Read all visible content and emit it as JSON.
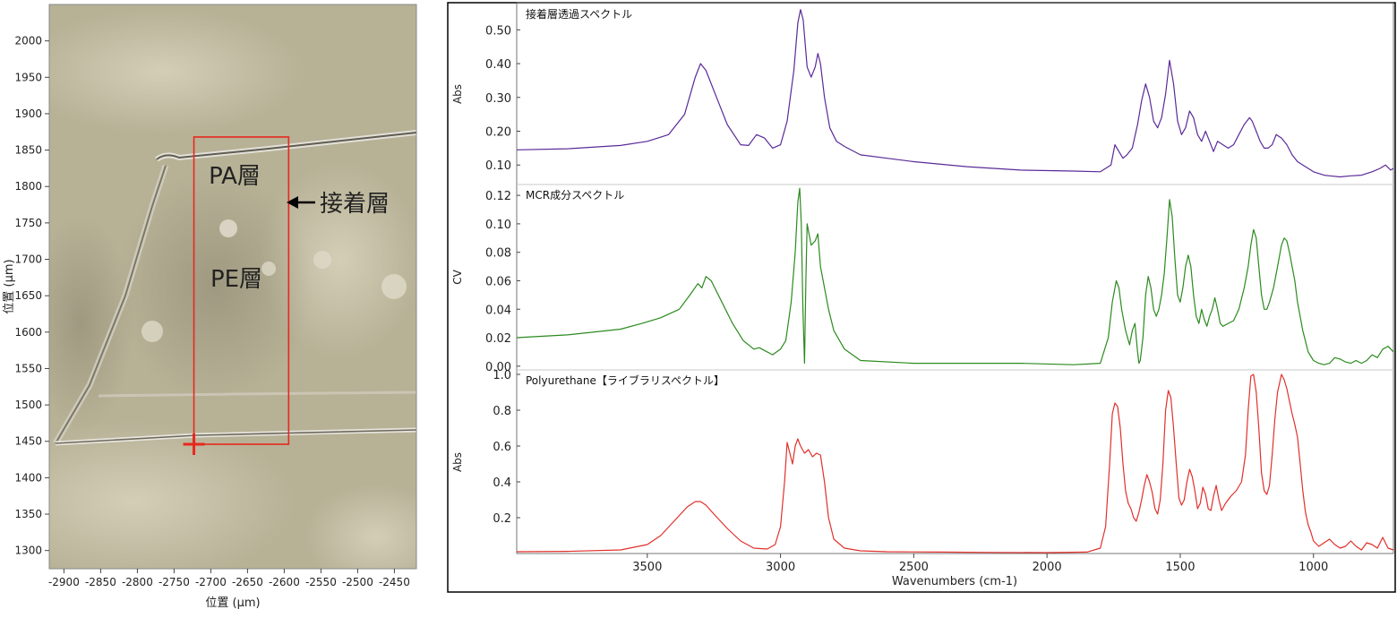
{
  "micrograph": {
    "xlabel": "位置 (µm)",
    "ylabel": "位置 (µm)",
    "xticks": [
      -2900,
      -2850,
      -2800,
      -2750,
      -2700,
      -2650,
      -2600,
      -2550,
      -2500,
      -2450
    ],
    "yticks": [
      1300,
      1350,
      1400,
      1450,
      1500,
      1550,
      1600,
      1650,
      1700,
      1750,
      1800,
      1850,
      1900,
      1950,
      2000
    ],
    "xlim": [
      -2920,
      -2420
    ],
    "ylim": [
      1275,
      2050
    ],
    "roi": {
      "x": [
        -2723,
        -2594
      ],
      "y": [
        1446,
        1868
      ]
    },
    "marker": {
      "x": -2723,
      "y": 1446
    },
    "labels": {
      "pa": "PA層",
      "pe": "PE層",
      "adhesive": "接着層"
    },
    "colors": {
      "bg": "#b3ac91",
      "roi": "#e8281e",
      "marker": "#e8281e"
    }
  },
  "chart_data": [
    {
      "type": "line",
      "title": "接着層透過スペクトル",
      "ylabel": "Abs",
      "xlim": [
        3990,
        700
      ],
      "ylim": [
        0.045,
        0.575
      ],
      "yticks": [
        "0.10",
        "0.20",
        "0.30",
        "0.40",
        "0.50"
      ],
      "color": "#5a2a98",
      "series": [
        {
          "x": [
            3990,
            3800,
            3600,
            3500,
            3420,
            3360,
            3320,
            3300,
            3280,
            3240,
            3200,
            3150,
            3120,
            3090,
            3060,
            3030,
            3000,
            2975,
            2950,
            2935,
            2925,
            2915,
            2900,
            2885,
            2870,
            2860,
            2850,
            2835,
            2815,
            2790,
            2760,
            2700,
            2600,
            2500,
            2300,
            2100,
            1900,
            1800,
            1760,
            1745,
            1730,
            1715,
            1700,
            1680,
            1660,
            1645,
            1630,
            1615,
            1600,
            1585,
            1570,
            1555,
            1540,
            1525,
            1510,
            1495,
            1480,
            1465,
            1450,
            1435,
            1420,
            1405,
            1390,
            1375,
            1360,
            1340,
            1320,
            1300,
            1280,
            1260,
            1240,
            1230,
            1215,
            1200,
            1185,
            1170,
            1155,
            1140,
            1120,
            1100,
            1080,
            1060,
            1040,
            1020,
            1000,
            980,
            960,
            940,
            900,
            860,
            820,
            780,
            750,
            730,
            710,
            700
          ],
          "values": [
            0.145,
            0.148,
            0.158,
            0.17,
            0.19,
            0.25,
            0.36,
            0.4,
            0.38,
            0.3,
            0.22,
            0.16,
            0.158,
            0.19,
            0.18,
            0.15,
            0.16,
            0.23,
            0.38,
            0.52,
            0.56,
            0.53,
            0.39,
            0.36,
            0.39,
            0.43,
            0.4,
            0.3,
            0.21,
            0.17,
            0.155,
            0.13,
            0.12,
            0.11,
            0.095,
            0.085,
            0.082,
            0.08,
            0.1,
            0.16,
            0.14,
            0.12,
            0.13,
            0.15,
            0.22,
            0.29,
            0.34,
            0.3,
            0.23,
            0.21,
            0.24,
            0.31,
            0.41,
            0.34,
            0.23,
            0.19,
            0.21,
            0.26,
            0.24,
            0.19,
            0.17,
            0.2,
            0.17,
            0.14,
            0.17,
            0.16,
            0.15,
            0.16,
            0.19,
            0.22,
            0.24,
            0.23,
            0.2,
            0.17,
            0.15,
            0.15,
            0.16,
            0.19,
            0.18,
            0.16,
            0.13,
            0.11,
            0.1,
            0.09,
            0.08,
            0.075,
            0.07,
            0.068,
            0.065,
            0.068,
            0.07,
            0.08,
            0.09,
            0.1,
            0.085,
            0.09
          ]
        }
      ]
    },
    {
      "type": "line",
      "title": "MCR成分スペクトル",
      "ylabel": "CV",
      "xlim": [
        3990,
        700
      ],
      "ylim": [
        -0.002,
        0.127
      ],
      "yticks": [
        "0.00",
        "0.02",
        "0.04",
        "0.06",
        "0.08",
        "0.10",
        "0.12"
      ],
      "color": "#2b8a1e",
      "series": [
        {
          "x": [
            3990,
            3800,
            3600,
            3520,
            3450,
            3380,
            3340,
            3310,
            3295,
            3280,
            3260,
            3220,
            3180,
            3140,
            3100,
            3080,
            3060,
            3030,
            3000,
            2980,
            2960,
            2945,
            2935,
            2928,
            2922,
            2916,
            2910,
            2905,
            2900,
            2895,
            2885,
            2870,
            2860,
            2850,
            2840,
            2820,
            2800,
            2760,
            2700,
            2500,
            2300,
            2100,
            1900,
            1800,
            1770,
            1755,
            1740,
            1730,
            1720,
            1705,
            1690,
            1680,
            1670,
            1660,
            1655,
            1650,
            1640,
            1630,
            1620,
            1610,
            1600,
            1590,
            1580,
            1570,
            1560,
            1550,
            1540,
            1530,
            1520,
            1510,
            1500,
            1490,
            1480,
            1470,
            1460,
            1450,
            1440,
            1430,
            1420,
            1410,
            1400,
            1390,
            1380,
            1370,
            1360,
            1350,
            1340,
            1320,
            1300,
            1280,
            1260,
            1245,
            1235,
            1225,
            1215,
            1205,
            1195,
            1185,
            1175,
            1165,
            1150,
            1135,
            1120,
            1110,
            1100,
            1090,
            1080,
            1070,
            1060,
            1040,
            1020,
            1000,
            980,
            960,
            940,
            920,
            900,
            880,
            860,
            840,
            820,
            800,
            780,
            760,
            740,
            720,
            700
          ],
          "values": [
            0.02,
            0.022,
            0.026,
            0.03,
            0.034,
            0.04,
            0.05,
            0.058,
            0.055,
            0.063,
            0.06,
            0.045,
            0.03,
            0.018,
            0.012,
            0.013,
            0.011,
            0.008,
            0.012,
            0.018,
            0.045,
            0.08,
            0.115,
            0.125,
            0.1,
            0.04,
            0.002,
            0.06,
            0.1,
            0.095,
            0.085,
            0.088,
            0.093,
            0.07,
            0.06,
            0.04,
            0.025,
            0.012,
            0.004,
            0.002,
            0.002,
            0.002,
            0.001,
            0.002,
            0.02,
            0.045,
            0.06,
            0.055,
            0.04,
            0.025,
            0.015,
            0.025,
            0.03,
            0.01,
            0.002,
            0.004,
            0.02,
            0.05,
            0.063,
            0.055,
            0.04,
            0.035,
            0.04,
            0.05,
            0.065,
            0.09,
            0.117,
            0.105,
            0.075,
            0.05,
            0.045,
            0.055,
            0.07,
            0.078,
            0.07,
            0.05,
            0.035,
            0.03,
            0.04,
            0.033,
            0.028,
            0.035,
            0.04,
            0.048,
            0.04,
            0.03,
            0.028,
            0.03,
            0.032,
            0.04,
            0.055,
            0.07,
            0.085,
            0.096,
            0.09,
            0.07,
            0.05,
            0.04,
            0.04,
            0.045,
            0.055,
            0.07,
            0.085,
            0.09,
            0.088,
            0.08,
            0.07,
            0.06,
            0.045,
            0.025,
            0.01,
            0.004,
            0.002,
            0.001,
            0.002,
            0.006,
            0.005,
            0.003,
            0.002,
            0.004,
            0.002,
            0.004,
            0.008,
            0.006,
            0.012,
            0.014,
            0.01
          ]
        }
      ]
    },
    {
      "type": "line",
      "title": "Polyurethane【ライブラリスペクトル】",
      "ylabel": "Abs",
      "xlabel": "Wavenumbers (cm-1)",
      "xlim": [
        3990,
        700
      ],
      "ylim": [
        0,
        1.02
      ],
      "yticks": [
        "0.2",
        "0.4",
        "0.6",
        "0.8",
        "1.0"
      ],
      "xticks": [
        3500,
        3000,
        2500,
        2000,
        1500,
        1000
      ],
      "color": "#e0302b",
      "series": [
        {
          "x": [
            3990,
            3800,
            3600,
            3500,
            3450,
            3400,
            3350,
            3320,
            3300,
            3280,
            3250,
            3200,
            3150,
            3100,
            3050,
            3020,
            3000,
            2985,
            2975,
            2965,
            2955,
            2945,
            2935,
            2925,
            2910,
            2895,
            2880,
            2865,
            2850,
            2835,
            2820,
            2800,
            2760,
            2700,
            2600,
            2400,
            2200,
            2000,
            1850,
            1800,
            1780,
            1765,
            1755,
            1745,
            1735,
            1725,
            1715,
            1705,
            1695,
            1685,
            1675,
            1665,
            1655,
            1645,
            1635,
            1625,
            1615,
            1605,
            1595,
            1585,
            1575,
            1565,
            1555,
            1545,
            1535,
            1525,
            1515,
            1505,
            1495,
            1485,
            1475,
            1465,
            1455,
            1445,
            1435,
            1425,
            1415,
            1405,
            1395,
            1385,
            1375,
            1365,
            1355,
            1345,
            1330,
            1310,
            1290,
            1270,
            1255,
            1245,
            1235,
            1225,
            1215,
            1205,
            1195,
            1185,
            1175,
            1165,
            1155,
            1145,
            1135,
            1120,
            1110,
            1100,
            1090,
            1080,
            1070,
            1060,
            1050,
            1040,
            1030,
            1020,
            1010,
            1000,
            980,
            960,
            940,
            920,
            900,
            880,
            860,
            840,
            820,
            800,
            780,
            760,
            740,
            720,
            700
          ],
          "values": [
            0.01,
            0.012,
            0.02,
            0.05,
            0.1,
            0.18,
            0.26,
            0.29,
            0.29,
            0.27,
            0.22,
            0.14,
            0.07,
            0.03,
            0.025,
            0.05,
            0.15,
            0.4,
            0.62,
            0.56,
            0.5,
            0.6,
            0.64,
            0.6,
            0.56,
            0.58,
            0.54,
            0.56,
            0.55,
            0.4,
            0.2,
            0.08,
            0.03,
            0.015,
            0.01,
            0.008,
            0.006,
            0.005,
            0.008,
            0.03,
            0.15,
            0.5,
            0.78,
            0.84,
            0.82,
            0.7,
            0.5,
            0.35,
            0.28,
            0.25,
            0.2,
            0.18,
            0.23,
            0.3,
            0.38,
            0.44,
            0.4,
            0.34,
            0.25,
            0.22,
            0.3,
            0.5,
            0.8,
            0.91,
            0.87,
            0.7,
            0.5,
            0.31,
            0.27,
            0.3,
            0.4,
            0.47,
            0.43,
            0.35,
            0.25,
            0.28,
            0.37,
            0.33,
            0.25,
            0.24,
            0.32,
            0.38,
            0.3,
            0.24,
            0.28,
            0.32,
            0.35,
            0.4,
            0.55,
            0.8,
            0.99,
            1.0,
            0.9,
            0.7,
            0.45,
            0.35,
            0.33,
            0.38,
            0.55,
            0.75,
            0.9,
            1.0,
            0.97,
            0.92,
            0.85,
            0.78,
            0.72,
            0.65,
            0.5,
            0.35,
            0.23,
            0.16,
            0.12,
            0.07,
            0.04,
            0.06,
            0.08,
            0.05,
            0.03,
            0.04,
            0.07,
            0.04,
            0.02,
            0.06,
            0.05,
            0.03,
            0.09,
            0.03,
            0.02
          ]
        }
      ]
    }
  ]
}
